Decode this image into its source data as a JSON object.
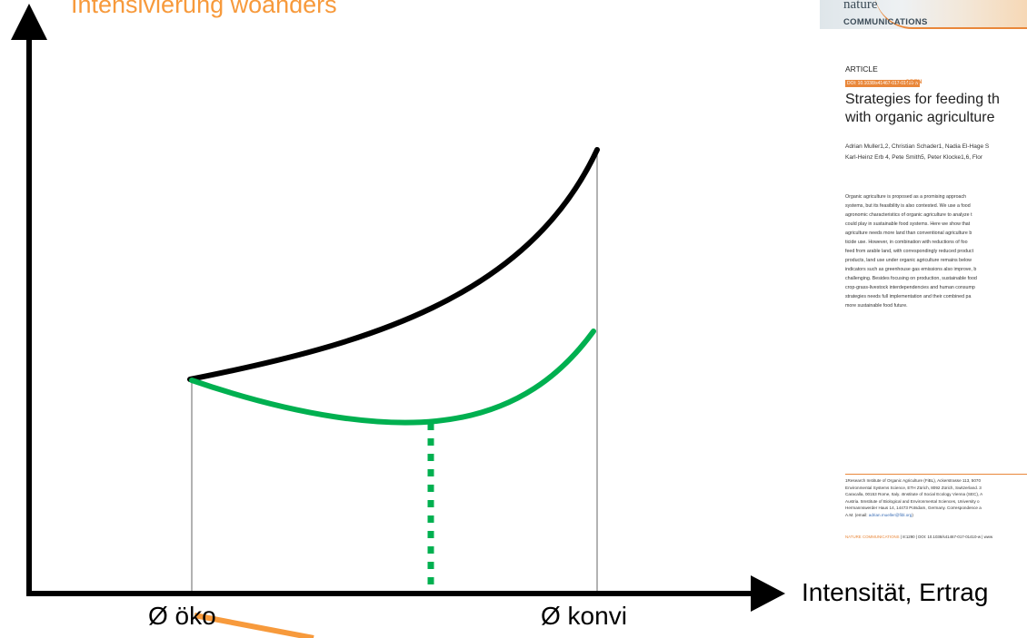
{
  "slide_title": "Intensivierung woanders",
  "x_axis_label": "Intensität, Ertrag",
  "tick_labels": {
    "oeko": "Ø öko",
    "konvi": "Ø konvi"
  },
  "colors": {
    "axis": "#000000",
    "curve_conventional": "#000000",
    "curve_green": "#00b050",
    "title_orange": "#f79a3c",
    "guide_lines": "#808080"
  },
  "paper": {
    "journal_top": "nature",
    "journal_bottom": "COMMUNICATIONS",
    "article_label": "ARTICLE",
    "doi_badge": "DOI: 10.1038/s41467-017-01410-w",
    "open_label": "OPEN",
    "title_lines": [
      "Strategies for feeding th",
      "with organic agriculture"
    ],
    "author_lines": [
      "Adrian Muller1,2, Christian Schader1, Nadia El-Hage S",
      "Karl-Heinz Erb 4, Pete Smith5, Peter Klocke1,6, Flor"
    ],
    "abstract_lines": [
      "Organic agriculture is proposed as a promising approach",
      "systems, but its feasibility is also contested. We use a food",
      "agronomic characteristics of organic agriculture to analyze t",
      "could play in sustainable food systems. Here we show that",
      "agriculture needs more land than conventional agriculture b",
      "ticide use. However, in combination with reductions of foo",
      "feed from arable land, with correspondingly reduced product",
      "products, land use under organic agriculture remains below",
      "indicators such as greenhouse gas emissions also improve, b",
      "challenging. Besides focusing on production, sustainable food",
      "crop-grass-livestock interdependencies and human consump",
      "strategies needs full implementation and their combined pa",
      "more sustainable food future."
    ],
    "affiliation_lines": [
      "1Research Institute of Organic Agriculture (FiBL), Ackerstrasse 113, 5070",
      "Environmental Systems Science, ETH Zürich, 8092 Zürich, Switzerland. 3",
      "Caracalla, 00153 Rome, Italy. 4Institute of Social Ecology Vienna (SEC), A",
      "Austria. 5Institute of Biological and Environmental Sciences, University o",
      "Hermannswerder Haus 14, 14473 Potsdam, Germany. Correspondence a"
    ],
    "affiliation_contact_prefix": "A.M. (email: ",
    "affiliation_email": "adrian.mueller@fibl.org",
    "affiliation_contact_suffix": ")",
    "footer_brand": "NATURE COMMUNICATIONS",
    "footer_rest": " | 8:1290  | DOI: 10.1038/s41467-017-01410-w | www"
  }
}
